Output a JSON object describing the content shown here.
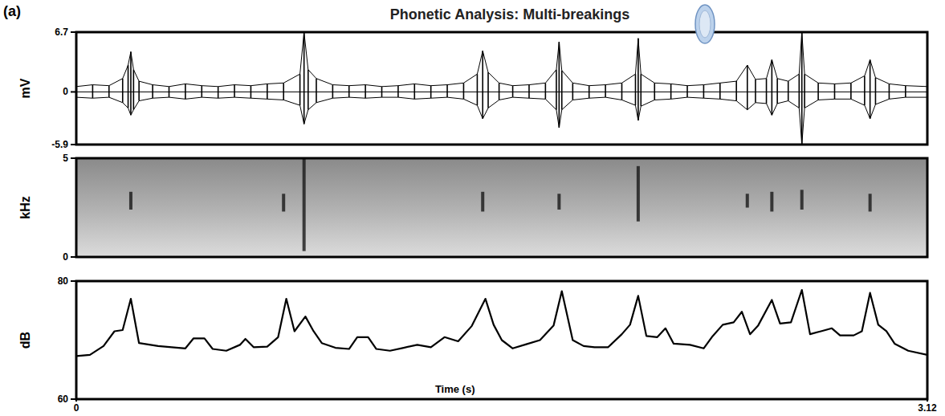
{
  "chart_data": [
    {
      "type": "area",
      "panel_label": "(a)",
      "title": "Phonetic Analysis: Multi-breakings",
      "ylabel": "mV",
      "xlim": [
        0,
        3.12
      ],
      "ylim": [
        -5.9,
        6.7
      ],
      "yticks": [
        -5.9,
        0,
        6.7
      ],
      "tick_labels": "y",
      "color": "#000000",
      "x": [
        0,
        0.06,
        0.12,
        0.17,
        0.19,
        0.2,
        0.21,
        0.23,
        0.28,
        0.34,
        0.4,
        0.46,
        0.52,
        0.58,
        0.64,
        0.7,
        0.76,
        0.82,
        0.835,
        0.85,
        0.88,
        0.94,
        1.0,
        1.06,
        1.12,
        1.18,
        1.24,
        1.3,
        1.36,
        1.42,
        1.47,
        1.49,
        1.51,
        1.55,
        1.6,
        1.66,
        1.72,
        1.76,
        1.77,
        1.78,
        1.82,
        1.88,
        1.94,
        2.0,
        2.05,
        2.06,
        2.07,
        2.12,
        2.18,
        2.24,
        2.3,
        2.36,
        2.42,
        2.46,
        2.49,
        2.53,
        2.55,
        2.57,
        2.61,
        2.65,
        2.66,
        2.67,
        2.72,
        2.78,
        2.84,
        2.89,
        2.91,
        2.93,
        2.98,
        3.04,
        3.12
      ],
      "max": [
        0.6,
        0.8,
        0.7,
        1.5,
        3.0,
        4.5,
        2.5,
        1.2,
        0.8,
        0.6,
        0.9,
        0.7,
        0.6,
        0.8,
        0.7,
        0.9,
        1.0,
        2.0,
        6.7,
        2.5,
        1.5,
        0.8,
        0.7,
        0.8,
        0.6,
        0.7,
        0.9,
        0.7,
        0.8,
        1.0,
        2.0,
        4.6,
        2.2,
        1.0,
        0.7,
        0.8,
        1.0,
        2.5,
        5.6,
        2.4,
        1.0,
        0.7,
        0.8,
        1.0,
        2.0,
        6.0,
        2.0,
        1.0,
        0.9,
        0.7,
        0.8,
        1.0,
        1.2,
        3.0,
        1.4,
        1.5,
        3.6,
        1.5,
        1.2,
        2.0,
        6.7,
        2.0,
        1.0,
        0.9,
        1.0,
        1.8,
        3.6,
        1.6,
        0.9,
        0.7,
        0.6
      ],
      "min": [
        -0.6,
        -0.7,
        -0.6,
        -1.2,
        -1.8,
        -2.6,
        -2.0,
        -1.0,
        -0.7,
        -0.6,
        -0.8,
        -0.6,
        -0.7,
        -0.6,
        -0.7,
        -0.8,
        -0.9,
        -1.5,
        -3.6,
        -2.0,
        -1.2,
        -0.7,
        -0.6,
        -0.7,
        -0.6,
        -0.6,
        -0.8,
        -0.7,
        -0.6,
        -0.8,
        -1.5,
        -3.0,
        -1.8,
        -0.9,
        -0.6,
        -0.7,
        -0.8,
        -2.0,
        -4.0,
        -2.0,
        -0.9,
        -0.7,
        -0.6,
        -0.9,
        -1.5,
        -3.2,
        -1.6,
        -0.9,
        -0.8,
        -0.6,
        -0.7,
        -0.8,
        -1.0,
        -2.0,
        -1.2,
        -1.3,
        -2.6,
        -1.3,
        -1.0,
        -1.8,
        -5.9,
        -1.8,
        -0.9,
        -0.8,
        -0.8,
        -1.5,
        -3.0,
        -1.4,
        -0.8,
        -0.6,
        -0.6
      ]
    },
    {
      "type": "spectrogram",
      "ylabel": "kHz",
      "xlim": [
        0,
        3.12
      ],
      "ylim": [
        0,
        5
      ],
      "yticks": [
        0,
        5
      ],
      "tick_labels": "y",
      "color": "#141414",
      "events": {
        "x": [
          0.2,
          0.76,
          0.835,
          1.49,
          1.77,
          2.06,
          2.46,
          2.55,
          2.66,
          2.91
        ],
        "low": [
          2.4,
          2.3,
          0.3,
          2.3,
          2.4,
          1.8,
          2.5,
          2.3,
          2.4,
          2.3
        ],
        "high": [
          3.3,
          3.2,
          5,
          3.3,
          3.2,
          4.6,
          3.2,
          3.3,
          3.4,
          3.2
        ]
      }
    },
    {
      "type": "line",
      "ylabel": "dB",
      "xlabel": "Time (s)",
      "xlim": [
        0,
        3.12
      ],
      "xticks": [
        0,
        3.12
      ],
      "ylim": [
        60,
        80
      ],
      "yticks": [
        60,
        80
      ],
      "color": "#000000",
      "x": [
        0,
        0.05,
        0.1,
        0.14,
        0.17,
        0.2,
        0.23,
        0.3,
        0.35,
        0.4,
        0.43,
        0.47,
        0.5,
        0.55,
        0.6,
        0.62,
        0.65,
        0.7,
        0.74,
        0.77,
        0.8,
        0.84,
        0.87,
        0.9,
        0.95,
        1.0,
        1.03,
        1.07,
        1.1,
        1.15,
        1.2,
        1.25,
        1.3,
        1.35,
        1.4,
        1.45,
        1.5,
        1.53,
        1.56,
        1.6,
        1.65,
        1.7,
        1.75,
        1.78,
        1.82,
        1.86,
        1.9,
        1.95,
        2.0,
        2.03,
        2.06,
        2.09,
        2.13,
        2.16,
        2.19,
        2.25,
        2.3,
        2.33,
        2.37,
        2.41,
        2.44,
        2.47,
        2.5,
        2.55,
        2.58,
        2.62,
        2.66,
        2.69,
        2.73,
        2.77,
        2.8,
        2.85,
        2.88,
        2.91,
        2.94,
        2.97,
        3.0,
        3.05,
        3.12
      ],
      "values": [
        67.3,
        67.5,
        69,
        71.5,
        71.7,
        77,
        69.5,
        69,
        68.8,
        68.6,
        70.3,
        70.3,
        68.5,
        68.2,
        69.2,
        70.2,
        68.8,
        68.9,
        70.5,
        77,
        71.5,
        74,
        71.5,
        69.5,
        68.7,
        68.5,
        70.5,
        70.5,
        68.5,
        68.2,
        68.7,
        69.2,
        68.8,
        70.5,
        69.8,
        72.4,
        77,
        72.6,
        70,
        68.6,
        69.3,
        70,
        72.5,
        78.3,
        70,
        69,
        68.8,
        68.8,
        71,
        72.6,
        77.5,
        70.7,
        70.5,
        72,
        69.4,
        69.2,
        68.6,
        70.5,
        72.6,
        73,
        74.8,
        71,
        72.5,
        76.8,
        72.8,
        73,
        78.5,
        71,
        71.5,
        72,
        70.8,
        70.8,
        71.5,
        78,
        72.6,
        71.5,
        69.4,
        68.2,
        67.5
      ]
    }
  ]
}
